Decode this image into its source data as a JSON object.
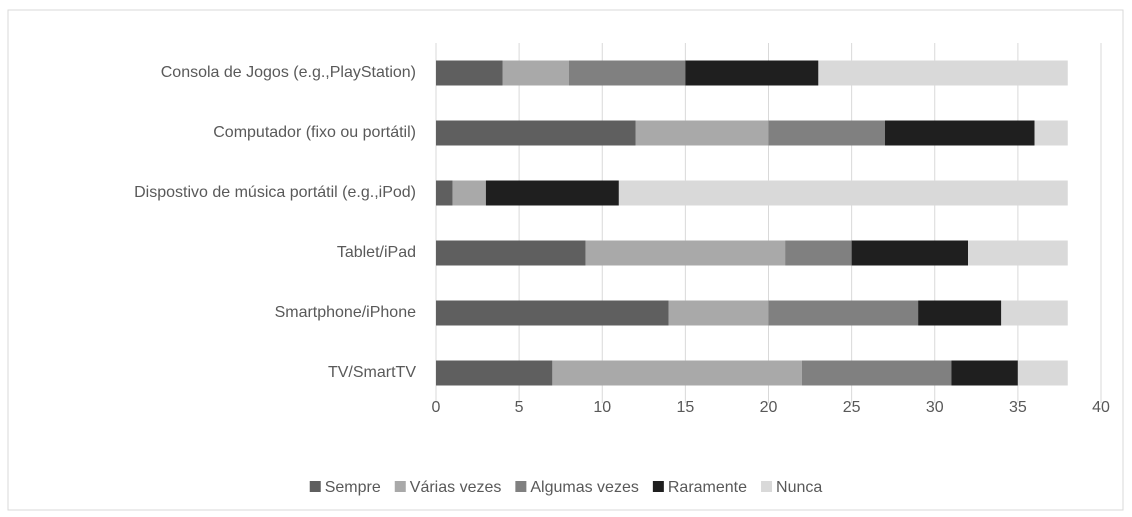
{
  "chart_data": {
    "type": "stacked-barh",
    "categories": [
      "Consola de Jogos (e.g.,PlayStation)",
      "Computador (fixo ou portátil)",
      "Dispostivo de música portátil (e.g.,iPod)",
      "Tablet/iPad",
      "Smartphone/iPhone",
      "TV/SmartTV"
    ],
    "series": [
      {
        "name": "Sempre",
        "color": "#5f5f5f",
        "values": [
          4,
          12,
          1,
          9,
          14,
          7
        ]
      },
      {
        "name": "Várias vezes",
        "color": "#a9a9a9",
        "values": [
          4,
          8,
          2,
          12,
          6,
          15
        ]
      },
      {
        "name": "Algumas vezes",
        "color": "#808080",
        "values": [
          7,
          7,
          0,
          4,
          9,
          9
        ]
      },
      {
        "name": "Raramente",
        "color": "#1f1f1f",
        "values": [
          8,
          9,
          8,
          7,
          5,
          4
        ]
      },
      {
        "name": "Nunca",
        "color": "#d9d9d9",
        "values": [
          15,
          2,
          27,
          6,
          4,
          3
        ]
      }
    ],
    "xlim": [
      0,
      40
    ],
    "xticks": [
      0,
      5,
      10,
      15,
      20,
      25,
      30,
      35,
      40
    ],
    "grid": true,
    "legend": "bottom"
  }
}
